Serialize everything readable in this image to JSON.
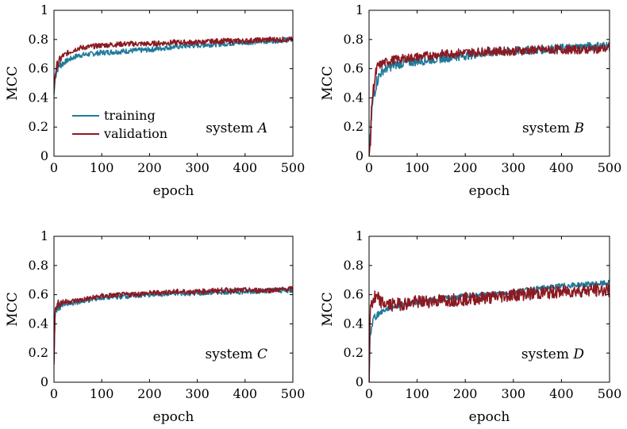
{
  "legend": {
    "training": "training",
    "validation": "validation"
  },
  "chart_data": [
    {
      "type": "line",
      "xlabel": "epoch",
      "ylabel": "MCC",
      "xlim": [
        0,
        500
      ],
      "ylim": [
        0,
        1
      ],
      "xticks": [
        0,
        100,
        200,
        300,
        400,
        500
      ],
      "yticks": [
        0,
        0.2,
        0.4,
        0.6,
        0.8,
        1
      ],
      "ytick_labels": [
        "0",
        "0.2",
        "0.4",
        "0.6",
        "0.8",
        "1"
      ],
      "annotation_prefix": "system",
      "annotation_italic": "A",
      "legend_position": "bottom-left",
      "series": [
        {
          "name": "training",
          "color": "#1f7a99",
          "x": [
            0,
            2,
            5,
            10,
            20,
            30,
            50,
            75,
            100,
            150,
            200,
            250,
            300,
            350,
            400,
            450,
            500
          ],
          "y": [
            0.42,
            0.52,
            0.58,
            0.62,
            0.64,
            0.66,
            0.69,
            0.7,
            0.71,
            0.72,
            0.73,
            0.75,
            0.76,
            0.77,
            0.78,
            0.79,
            0.8
          ]
        },
        {
          "name": "validation",
          "color": "#8b1a22",
          "x": [
            0,
            2,
            5,
            10,
            20,
            30,
            50,
            75,
            100,
            150,
            200,
            250,
            300,
            350,
            400,
            450,
            500
          ],
          "y": [
            0.45,
            0.55,
            0.61,
            0.65,
            0.69,
            0.71,
            0.74,
            0.75,
            0.76,
            0.77,
            0.77,
            0.78,
            0.78,
            0.79,
            0.79,
            0.8,
            0.8
          ]
        }
      ]
    },
    {
      "type": "line",
      "xlabel": "epoch",
      "ylabel": "MCC",
      "xlim": [
        0,
        500
      ],
      "ylim": [
        0,
        1
      ],
      "xticks": [
        0,
        100,
        200,
        300,
        400,
        500
      ],
      "yticks": [
        0,
        0.2,
        0.4,
        0.6,
        0.8,
        1
      ],
      "ytick_labels": [
        "0",
        "0.2",
        "0.4",
        "0.6",
        "0.8",
        "1"
      ],
      "annotation_prefix": "system",
      "annotation_italic": "B",
      "series": [
        {
          "name": "training",
          "color": "#1f7a99",
          "x": [
            0,
            3,
            6,
            10,
            15,
            20,
            30,
            50,
            75,
            100,
            150,
            200,
            250,
            300,
            350,
            400,
            450,
            500
          ],
          "y": [
            0.0,
            0.15,
            0.32,
            0.42,
            0.5,
            0.55,
            0.59,
            0.62,
            0.64,
            0.65,
            0.67,
            0.69,
            0.71,
            0.72,
            0.73,
            0.74,
            0.75,
            0.76
          ]
        },
        {
          "name": "validation",
          "color": "#8b1a22",
          "x": [
            0,
            3,
            6,
            10,
            15,
            20,
            30,
            50,
            75,
            100,
            150,
            200,
            250,
            300,
            350,
            400,
            450,
            500
          ],
          "y": [
            0.0,
            0.12,
            0.38,
            0.48,
            0.58,
            0.62,
            0.64,
            0.66,
            0.67,
            0.68,
            0.7,
            0.71,
            0.72,
            0.72,
            0.73,
            0.73,
            0.73,
            0.74
          ]
        }
      ]
    },
    {
      "type": "line",
      "xlabel": "epoch",
      "ylabel": "MCC",
      "xlim": [
        0,
        500
      ],
      "ylim": [
        0,
        1
      ],
      "xticks": [
        0,
        100,
        200,
        300,
        400,
        500
      ],
      "yticks": [
        0,
        0.2,
        0.4,
        0.6,
        0.8,
        1
      ],
      "ytick_labels": [
        "0",
        "0.2",
        "0.4",
        "0.6",
        "0.8",
        "1"
      ],
      "annotation_prefix": "system",
      "annotation_italic": "C",
      "series": [
        {
          "name": "training",
          "color": "#1f7a99",
          "x": [
            0,
            2,
            5,
            10,
            20,
            50,
            100,
            150,
            200,
            250,
            300,
            350,
            400,
            450,
            500
          ],
          "y": [
            0.15,
            0.45,
            0.5,
            0.52,
            0.53,
            0.55,
            0.58,
            0.59,
            0.6,
            0.61,
            0.61,
            0.62,
            0.62,
            0.63,
            0.63
          ]
        },
        {
          "name": "validation",
          "color": "#8b1a22",
          "x": [
            0,
            2,
            5,
            10,
            20,
            50,
            100,
            150,
            200,
            250,
            300,
            350,
            400,
            450,
            500
          ],
          "y": [
            0.12,
            0.47,
            0.52,
            0.54,
            0.55,
            0.56,
            0.59,
            0.6,
            0.61,
            0.62,
            0.62,
            0.63,
            0.63,
            0.63,
            0.64
          ]
        }
      ]
    },
    {
      "type": "line",
      "xlabel": "epoch",
      "ylabel": "MCC",
      "xlim": [
        0,
        500
      ],
      "ylim": [
        0,
        1
      ],
      "xticks": [
        0,
        100,
        200,
        300,
        400,
        500
      ],
      "yticks": [
        0,
        0.2,
        0.4,
        0.6,
        0.8,
        1
      ],
      "ytick_labels": [
        "0",
        "0.2",
        "0.4",
        "0.6",
        "0.8",
        "1"
      ],
      "annotation_prefix": "system",
      "annotation_italic": "D",
      "series": [
        {
          "name": "training",
          "color": "#1f7a99",
          "x": [
            0,
            2,
            5,
            10,
            20,
            30,
            50,
            100,
            150,
            200,
            250,
            300,
            350,
            400,
            450,
            500
          ],
          "y": [
            0.0,
            0.3,
            0.38,
            0.44,
            0.47,
            0.49,
            0.52,
            0.55,
            0.57,
            0.59,
            0.6,
            0.62,
            0.64,
            0.66,
            0.67,
            0.68
          ]
        },
        {
          "name": "validation",
          "color": "#8b1a22",
          "x": [
            0,
            2,
            5,
            10,
            20,
            30,
            50,
            100,
            150,
            200,
            250,
            300,
            350,
            400,
            450,
            500
          ],
          "y": [
            0.0,
            0.45,
            0.55,
            0.57,
            0.56,
            0.54,
            0.53,
            0.55,
            0.56,
            0.57,
            0.58,
            0.6,
            0.61,
            0.62,
            0.63,
            0.63
          ]
        }
      ]
    }
  ]
}
